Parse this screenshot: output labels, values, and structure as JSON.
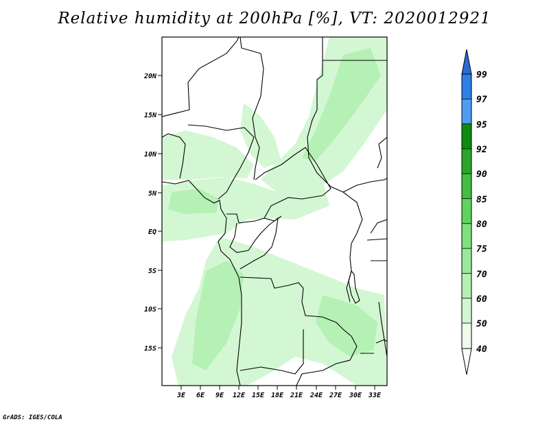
{
  "title": "Relative humidity at 200hPa [%], VT: 2020012921",
  "credit": "GrADS: IGES/COLA",
  "map": {
    "lat_ticks": [
      "20N",
      "15N",
      "10N",
      "5N",
      "EQ",
      "5S",
      "10S",
      "15S"
    ],
    "lon_ticks": [
      "3E",
      "6E",
      "9E",
      "12E",
      "15E",
      "18E",
      "21E",
      "24E",
      "27E",
      "30E",
      "33E"
    ]
  },
  "colorbar": {
    "labels": [
      "99",
      "97",
      "95",
      "92",
      "90",
      "85",
      "80",
      "75",
      "70",
      "60",
      "50",
      "40"
    ],
    "colors": [
      "#2a6bd6",
      "#2f7fe8",
      "#4e9cf0",
      "#0e8a0e",
      "#2aa52a",
      "#43bd43",
      "#5fd35f",
      "#7fe07f",
      "#9ae99a",
      "#b5f0b5",
      "#d3f7d3",
      "#edfced",
      "#ffffff"
    ]
  },
  "field_colors": {
    "light": "#d3f7d3",
    "mid": "#b5f0b5",
    "strong": "#9ae99a"
  }
}
